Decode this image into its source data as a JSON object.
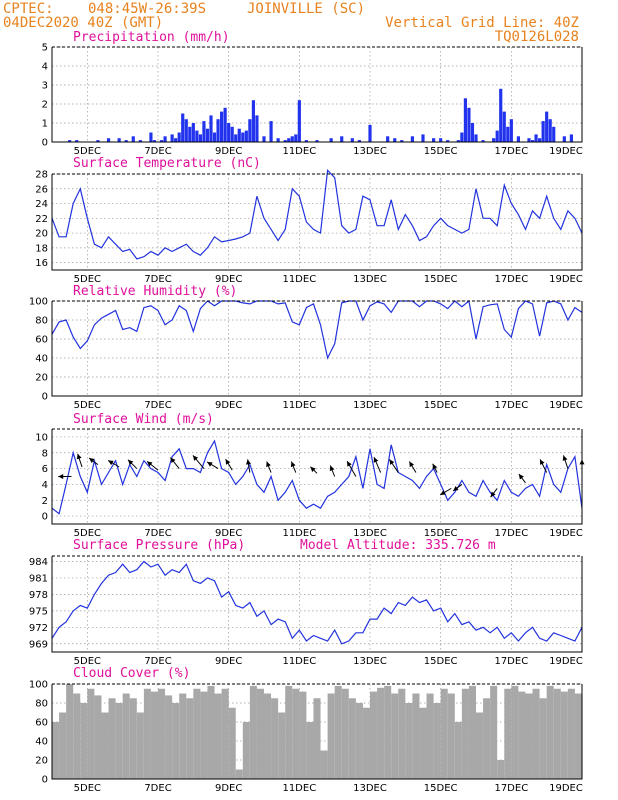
{
  "header": {
    "source": "CPTEC:",
    "coords": "048:45W-26:39S",
    "station": "JOINVILLE (SC)",
    "init_time": "04DEC2020 40Z (GMT)",
    "grid_note": "Vertical Grid Line: 40Z",
    "model_id": "TQ0126L028"
  },
  "x_ticks": [
    "5DEC",
    "7DEC",
    "9DEC",
    "11DEC",
    "13DEC",
    "15DEC",
    "17DEC",
    "19DEC"
  ],
  "colors": {
    "series": "#2233dd",
    "bars": "#2233ee",
    "cloud": "#a8a8a8",
    "titles": "#e0109a",
    "header": "#e8821e"
  },
  "chart_data": [
    {
      "id": "precip",
      "type": "bar",
      "title": "Precipitation (mm/h)",
      "ylim": [
        0,
        5
      ],
      "yticks": [
        "0",
        "1",
        "2",
        "3",
        "4",
        "5"
      ],
      "xlim": [
        4.0,
        19.0
      ],
      "bar_width": 0.09,
      "x": [
        4.5,
        4.7,
        5.3,
        5.6,
        5.9,
        6.1,
        6.3,
        6.5,
        6.8,
        6.9,
        7.1,
        7.2,
        7.4,
        7.5,
        7.6,
        7.7,
        7.8,
        7.9,
        8.0,
        8.1,
        8.2,
        8.3,
        8.4,
        8.5,
        8.6,
        8.7,
        8.8,
        8.9,
        9.0,
        9.1,
        9.2,
        9.3,
        9.4,
        9.5,
        9.6,
        9.7,
        9.8,
        10.0,
        10.2,
        10.4,
        10.6,
        10.7,
        10.8,
        10.9,
        11.0,
        11.2,
        11.5,
        11.9,
        12.2,
        12.5,
        12.7,
        13.0,
        13.5,
        13.7,
        13.9,
        14.2,
        14.5,
        14.8,
        15.0,
        15.2,
        15.5,
        15.6,
        15.7,
        15.8,
        15.9,
        16.0,
        16.2,
        16.5,
        16.6,
        16.7,
        16.8,
        16.9,
        17.0,
        17.2,
        17.5,
        17.6,
        17.7,
        17.8,
        17.9,
        18.0,
        18.1,
        18.2,
        18.5,
        18.7
      ],
      "values": [
        0.1,
        0.1,
        0.1,
        0.2,
        0.2,
        0.1,
        0.3,
        0.1,
        0.5,
        0.1,
        0.1,
        0.3,
        0.4,
        0.2,
        0.5,
        1.5,
        1.2,
        0.8,
        1.0,
        0.6,
        0.4,
        1.1,
        0.7,
        1.4,
        0.5,
        1.2,
        1.6,
        1.8,
        1.0,
        0.8,
        0.4,
        0.7,
        0.5,
        0.6,
        1.2,
        2.2,
        1.4,
        0.3,
        1.1,
        0.2,
        0.1,
        0.2,
        0.3,
        0.4,
        2.2,
        0.1,
        0.1,
        0.2,
        0.3,
        0.2,
        0.1,
        0.9,
        0.3,
        0.2,
        0.1,
        0.3,
        0.4,
        0.2,
        0.2,
        0.1,
        0.1,
        0.5,
        2.3,
        1.8,
        1.0,
        0.4,
        0.1,
        0.2,
        0.6,
        2.8,
        1.6,
        0.8,
        1.2,
        0.3,
        0.2,
        0.1,
        0.4,
        0.2,
        1.1,
        1.6,
        1.2,
        0.8,
        0.3,
        0.4
      ]
    },
    {
      "id": "temp",
      "type": "line",
      "title": "Surface Temperature (nC)",
      "ylim": [
        15,
        28
      ],
      "yticks": [
        "16",
        "18",
        "20",
        "22",
        "24",
        "26",
        "28"
      ],
      "xlim": [
        4.0,
        19.0
      ],
      "x": [
        4.0,
        4.2,
        4.4,
        4.6,
        4.8,
        5.0,
        5.2,
        5.4,
        5.6,
        5.8,
        6.0,
        6.2,
        6.4,
        6.6,
        6.8,
        7.0,
        7.2,
        7.4,
        7.6,
        7.8,
        8.0,
        8.2,
        8.4,
        8.6,
        8.8,
        9.0,
        9.2,
        9.4,
        9.6,
        9.8,
        10.0,
        10.2,
        10.4,
        10.6,
        10.8,
        11.0,
        11.2,
        11.4,
        11.6,
        11.8,
        12.0,
        12.2,
        12.4,
        12.6,
        12.8,
        13.0,
        13.2,
        13.4,
        13.6,
        13.8,
        14.0,
        14.2,
        14.4,
        14.6,
        14.8,
        15.0,
        15.2,
        15.4,
        15.6,
        15.8,
        16.0,
        16.2,
        16.4,
        16.6,
        16.8,
        17.0,
        17.2,
        17.4,
        17.6,
        17.8,
        18.0,
        18.2,
        18.4,
        18.6,
        18.8,
        19.0
      ],
      "values": [
        22.0,
        19.5,
        19.5,
        24.0,
        26.0,
        22.0,
        18.5,
        18.0,
        19.5,
        18.5,
        17.5,
        17.8,
        16.5,
        16.8,
        17.5,
        17.0,
        18.0,
        17.5,
        18.0,
        18.5,
        17.5,
        17.0,
        18.0,
        19.5,
        18.8,
        19.0,
        19.2,
        19.5,
        20.0,
        25.0,
        22.0,
        20.5,
        19.0,
        20.5,
        26.0,
        25.0,
        21.5,
        20.5,
        20.0,
        28.5,
        27.5,
        21.0,
        20.0,
        20.5,
        25.0,
        24.5,
        21.0,
        21.0,
        24.5,
        20.5,
        22.5,
        21.0,
        19.0,
        19.5,
        21.0,
        22.0,
        21.0,
        20.5,
        20.0,
        20.5,
        26.0,
        22.0,
        22.0,
        21.0,
        26.5,
        24.0,
        22.5,
        20.5,
        23.0,
        22.0,
        25.0,
        22.0,
        20.5,
        23.0,
        22.0,
        20.0
      ]
    },
    {
      "id": "rh",
      "type": "line",
      "title": "Relative Humidity (%)",
      "ylim": [
        0,
        100
      ],
      "yticks": [
        "0",
        "20",
        "40",
        "60",
        "80",
        "100"
      ],
      "xlim": [
        4.0,
        19.0
      ],
      "x": [
        4.0,
        4.2,
        4.4,
        4.6,
        4.8,
        5.0,
        5.2,
        5.4,
        5.6,
        5.8,
        6.0,
        6.2,
        6.4,
        6.6,
        6.8,
        7.0,
        7.2,
        7.4,
        7.6,
        7.8,
        8.0,
        8.2,
        8.4,
        8.6,
        8.8,
        9.0,
        9.2,
        9.4,
        9.6,
        9.8,
        10.0,
        10.2,
        10.4,
        10.6,
        10.8,
        11.0,
        11.2,
        11.4,
        11.6,
        11.8,
        12.0,
        12.2,
        12.4,
        12.6,
        12.8,
        13.0,
        13.2,
        13.4,
        13.6,
        13.8,
        14.0,
        14.2,
        14.4,
        14.6,
        14.8,
        15.0,
        15.2,
        15.4,
        15.6,
        15.8,
        16.0,
        16.2,
        16.4,
        16.6,
        16.8,
        17.0,
        17.2,
        17.4,
        17.6,
        17.8,
        18.0,
        18.2,
        18.4,
        18.6,
        18.8,
        19.0
      ],
      "values": [
        65,
        78,
        80,
        62,
        50,
        58,
        75,
        82,
        86,
        90,
        70,
        72,
        68,
        93,
        95,
        90,
        75,
        80,
        95,
        90,
        68,
        92,
        100,
        95,
        100,
        100,
        100,
        98,
        97,
        100,
        100,
        100,
        97,
        98,
        78,
        75,
        93,
        97,
        75,
        40,
        55,
        98,
        100,
        100,
        80,
        95,
        99,
        97,
        88,
        100,
        100,
        100,
        94,
        100,
        100,
        97,
        92,
        100,
        94,
        100,
        60,
        94,
        96,
        97,
        70,
        62,
        92,
        100,
        97,
        63,
        98,
        100,
        97,
        80,
        93,
        88
      ]
    },
    {
      "id": "wind",
      "type": "line",
      "title": "Surface Wind (m/s)",
      "ylim": [
        -1,
        11
      ],
      "yticks": [
        "0",
        "2",
        "4",
        "6",
        "8",
        "10"
      ],
      "xlim": [
        4.0,
        19.0
      ],
      "x": [
        4.0,
        4.2,
        4.4,
        4.6,
        4.8,
        5.0,
        5.2,
        5.4,
        5.6,
        5.8,
        6.0,
        6.2,
        6.4,
        6.6,
        6.8,
        7.0,
        7.2,
        7.4,
        7.6,
        7.8,
        8.0,
        8.2,
        8.4,
        8.6,
        8.8,
        9.0,
        9.2,
        9.4,
        9.6,
        9.8,
        10.0,
        10.2,
        10.4,
        10.6,
        10.8,
        11.0,
        11.2,
        11.4,
        11.6,
        11.8,
        12.0,
        12.2,
        12.4,
        12.6,
        12.8,
        13.0,
        13.2,
        13.4,
        13.6,
        13.8,
        14.0,
        14.2,
        14.4,
        14.6,
        14.8,
        15.0,
        15.2,
        15.4,
        15.6,
        15.8,
        16.0,
        16.2,
        16.4,
        16.6,
        16.8,
        17.0,
        17.2,
        17.4,
        17.6,
        17.8,
        18.0,
        18.2,
        18.4,
        18.6,
        18.8,
        19.0
      ],
      "values": [
        1.0,
        0.3,
        4.0,
        8.0,
        5.0,
        3.0,
        7.0,
        4.0,
        5.5,
        7.0,
        4.0,
        6.5,
        5.0,
        7.0,
        6.0,
        5.5,
        4.5,
        7.5,
        8.5,
        6.0,
        6.0,
        5.5,
        8.0,
        9.5,
        6.0,
        5.5,
        4.0,
        5.0,
        6.5,
        4.0,
        3.0,
        5.0,
        2.0,
        3.0,
        4.5,
        2.0,
        1.0,
        1.5,
        1.0,
        2.5,
        3.0,
        4.0,
        5.0,
        7.5,
        3.5,
        8.5,
        4.0,
        3.5,
        9.0,
        5.5,
        5.0,
        4.5,
        3.5,
        5.0,
        6.0,
        4.0,
        2.0,
        3.0,
        4.5,
        3.0,
        2.5,
        4.5,
        3.0,
        2.0,
        4.5,
        3.0,
        2.5,
        3.5,
        4.0,
        2.5,
        6.5,
        4.0,
        3.0,
        6.0,
        7.5,
        1.0
      ],
      "vectors": [
        {
          "x": 4.55,
          "y": 5.0,
          "u": -0.6,
          "v": 0.0
        },
        {
          "x": 4.85,
          "y": 6.2,
          "u": -0.2,
          "v": 0.6
        },
        {
          "x": 5.3,
          "y": 6.5,
          "u": -0.4,
          "v": 0.3
        },
        {
          "x": 5.9,
          "y": 6.2,
          "u": -0.5,
          "v": 0.3
        },
        {
          "x": 6.4,
          "y": 6.0,
          "u": -0.4,
          "v": 0.4
        },
        {
          "x": 7.0,
          "y": 5.8,
          "u": -0.5,
          "v": 0.4
        },
        {
          "x": 7.6,
          "y": 6.0,
          "u": -0.4,
          "v": 0.5
        },
        {
          "x": 8.3,
          "y": 6.0,
          "u": -0.5,
          "v": 0.6
        },
        {
          "x": 8.7,
          "y": 6.0,
          "u": -0.5,
          "v": 0.3
        },
        {
          "x": 9.1,
          "y": 5.8,
          "u": -0.3,
          "v": 0.5
        },
        {
          "x": 9.6,
          "y": 5.5,
          "u": -0.1,
          "v": 0.6
        },
        {
          "x": 10.2,
          "y": 5.5,
          "u": -0.2,
          "v": 0.5
        },
        {
          "x": 10.9,
          "y": 5.5,
          "u": -0.2,
          "v": 0.5
        },
        {
          "x": 11.5,
          "y": 5.4,
          "u": -0.3,
          "v": 0.3
        },
        {
          "x": 12.0,
          "y": 5.0,
          "u": -0.2,
          "v": 0.5
        },
        {
          "x": 12.6,
          "y": 5.0,
          "u": -0.4,
          "v": 0.7
        },
        {
          "x": 13.3,
          "y": 5.5,
          "u": -0.3,
          "v": 0.7
        },
        {
          "x": 13.8,
          "y": 5.5,
          "u": -0.4,
          "v": 0.6
        },
        {
          "x": 14.3,
          "y": 5.5,
          "u": -0.3,
          "v": 0.5
        },
        {
          "x": 14.9,
          "y": 5.5,
          "u": -0.2,
          "v": 0.4
        },
        {
          "x": 15.3,
          "y": 3.5,
          "u": -0.5,
          "v": -0.3
        },
        {
          "x": 15.6,
          "y": 4.0,
          "u": -0.4,
          "v": -0.3
        },
        {
          "x": 16.6,
          "y": 3.5,
          "u": -0.3,
          "v": -0.4
        },
        {
          "x": 17.4,
          "y": 4.2,
          "u": -0.3,
          "v": 0.4
        },
        {
          "x": 18.0,
          "y": 5.5,
          "u": -0.3,
          "v": 0.6
        },
        {
          "x": 18.6,
          "y": 6.0,
          "u": -0.2,
          "v": 0.6
        },
        {
          "x": 19.0,
          "y": 5.5,
          "u": 0.0,
          "v": 0.6
        }
      ]
    },
    {
      "id": "pressure",
      "type": "line",
      "title": "Surface Pressure (hPa)",
      "subtitle": "Model Altitude: 335.726 m",
      "ylim": [
        967.5,
        985
      ],
      "yticks": [
        "969",
        "972",
        "975",
        "978",
        "981",
        "984"
      ],
      "xlim": [
        4.0,
        19.0
      ],
      "x": [
        4.0,
        4.2,
        4.4,
        4.6,
        4.8,
        5.0,
        5.2,
        5.4,
        5.6,
        5.8,
        6.0,
        6.2,
        6.4,
        6.6,
        6.8,
        7.0,
        7.2,
        7.4,
        7.6,
        7.8,
        8.0,
        8.2,
        8.4,
        8.6,
        8.8,
        9.0,
        9.2,
        9.4,
        9.6,
        9.8,
        10.0,
        10.2,
        10.4,
        10.6,
        10.8,
        11.0,
        11.2,
        11.4,
        11.6,
        11.8,
        12.0,
        12.2,
        12.4,
        12.6,
        12.8,
        13.0,
        13.2,
        13.4,
        13.6,
        13.8,
        14.0,
        14.2,
        14.4,
        14.6,
        14.8,
        15.0,
        15.2,
        15.4,
        15.6,
        15.8,
        16.0,
        16.2,
        16.4,
        16.6,
        16.8,
        17.0,
        17.2,
        17.4,
        17.6,
        17.8,
        18.0,
        18.2,
        18.4,
        18.6,
        18.8,
        19.0
      ],
      "values": [
        970.0,
        972.0,
        973.0,
        975.0,
        976.0,
        975.5,
        978.0,
        980.0,
        981.5,
        982.0,
        983.5,
        982.0,
        982.5,
        984.0,
        983.0,
        983.5,
        981.5,
        982.5,
        982.0,
        983.5,
        980.5,
        980.0,
        981.0,
        980.5,
        977.5,
        978.5,
        976.0,
        975.5,
        976.5,
        974.0,
        975.0,
        972.5,
        973.5,
        973.0,
        970.0,
        971.5,
        969.5,
        970.5,
        970.0,
        969.5,
        971.5,
        969.0,
        969.5,
        971.0,
        971.0,
        973.5,
        973.5,
        975.5,
        974.5,
        976.5,
        976.0,
        977.5,
        976.5,
        977.0,
        975.0,
        975.5,
        973.0,
        974.5,
        972.5,
        973.0,
        971.5,
        972.0,
        971.0,
        972.0,
        970.0,
        971.0,
        969.5,
        971.0,
        972.0,
        970.0,
        969.5,
        971.0,
        970.5,
        970.0,
        969.5,
        972.0
      ]
    },
    {
      "id": "cloud",
      "type": "area",
      "title": "Cloud Cover (%)",
      "ylim": [
        0,
        100
      ],
      "yticks": [
        "0",
        "20",
        "40",
        "60",
        "80",
        "100"
      ],
      "xlim": [
        4.0,
        19.0
      ],
      "x": [
        4.0,
        4.2,
        4.4,
        4.6,
        4.8,
        5.0,
        5.2,
        5.4,
        5.6,
        5.8,
        6.0,
        6.2,
        6.4,
        6.6,
        6.8,
        7.0,
        7.2,
        7.4,
        7.6,
        7.8,
        8.0,
        8.2,
        8.4,
        8.6,
        8.8,
        9.0,
        9.2,
        9.4,
        9.6,
        9.8,
        10.0,
        10.2,
        10.4,
        10.6,
        10.8,
        11.0,
        11.2,
        11.4,
        11.6,
        11.8,
        12.0,
        12.2,
        12.4,
        12.6,
        12.8,
        13.0,
        13.2,
        13.4,
        13.6,
        13.8,
        14.0,
        14.2,
        14.4,
        14.6,
        14.8,
        15.0,
        15.2,
        15.4,
        15.6,
        15.8,
        16.0,
        16.2,
        16.4,
        16.6,
        16.8,
        17.0,
        17.2,
        17.4,
        17.6,
        17.8,
        18.0,
        18.2,
        18.4,
        18.6,
        18.8,
        19.0
      ],
      "values": [
        60,
        70,
        100,
        90,
        80,
        95,
        88,
        70,
        85,
        80,
        90,
        85,
        70,
        95,
        92,
        95,
        88,
        80,
        90,
        85,
        95,
        92,
        98,
        90,
        95,
        75,
        10,
        60,
        98,
        95,
        90,
        85,
        70,
        98,
        95,
        92,
        60,
        85,
        30,
        90,
        98,
        95,
        85,
        80,
        75,
        92,
        96,
        98,
        90,
        95,
        80,
        90,
        75,
        90,
        80,
        95,
        90,
        60,
        95,
        98,
        70,
        85,
        98,
        20,
        95,
        98,
        92,
        90,
        95,
        85,
        98,
        95,
        92,
        95,
        90,
        98
      ]
    }
  ]
}
